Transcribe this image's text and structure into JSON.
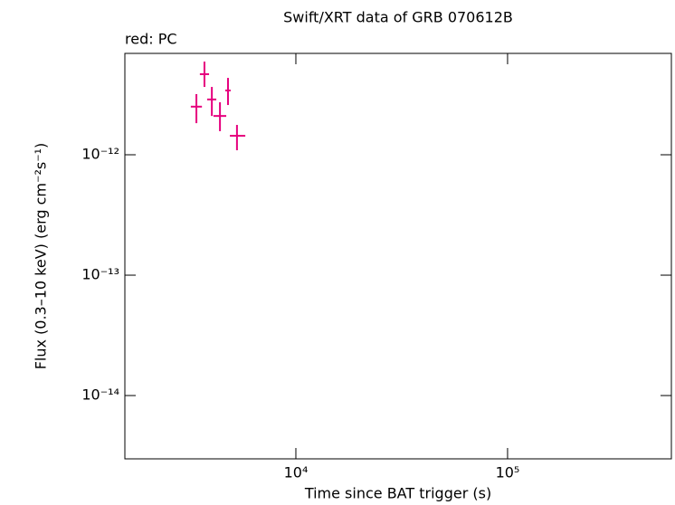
{
  "chart_data": {
    "type": "scatter",
    "title": "Swift/XRT data of GRB 070612B",
    "subtitle": "red: PC",
    "x_label": "Time since BAT trigger (s)",
    "y_label": "Flux (0.3–10 keV) (erg cm⁻²s⁻¹)",
    "x_log": true,
    "y_log": true,
    "xlim": [
      1557,
      594000
    ],
    "ylim": [
      2.98e-15,
      6.95e-12
    ],
    "xticks": [
      {
        "value": 10000,
        "label": "10⁴"
      },
      {
        "value": 100000,
        "label": "10⁵"
      }
    ],
    "yticks": [
      {
        "value": 1e-14,
        "label": "10⁻¹⁴"
      },
      {
        "value": 1e-13,
        "label": "10⁻¹³"
      },
      {
        "value": 1e-12,
        "label": "10⁻¹²"
      }
    ],
    "series": [
      {
        "color": "#e6007e",
        "x": [
          3390,
          3700,
          4010,
          4380,
          4780,
          5270
        ],
        "x_low": [
          3190,
          3520,
          3810,
          4080,
          4640,
          4880
        ],
        "x_high": [
          3600,
          3890,
          4210,
          4690,
          4920,
          5770
        ],
        "values": [
          2.51e-12,
          4.67e-12,
          2.88e-12,
          2.1e-12,
          3.42e-12,
          1.44e-12
        ],
        "y_low": [
          1.83e-12,
          3.66e-12,
          2.1e-12,
          1.57e-12,
          2.59e-12,
          1.09e-12
        ],
        "y_high": [
          3.19e-12,
          5.94e-12,
          3.66e-12,
          2.73e-12,
          4.35e-12,
          1.77e-12
        ]
      }
    ]
  }
}
